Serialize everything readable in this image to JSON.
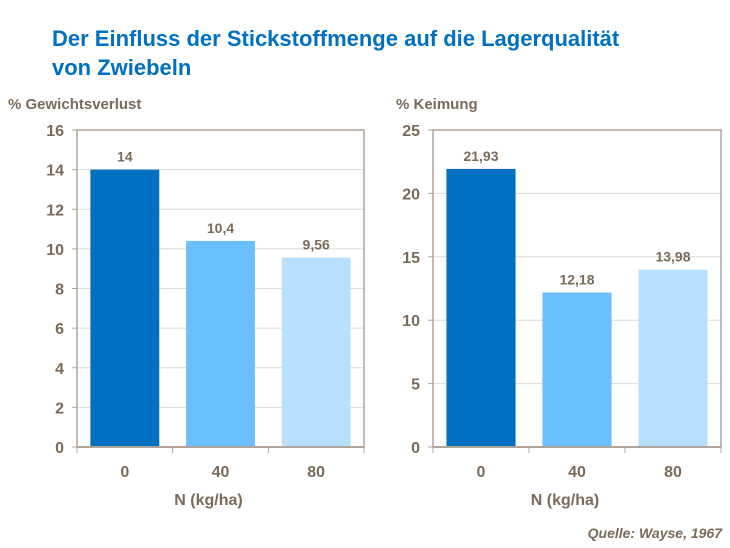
{
  "title_line1": "Der Einfluss der Stickstoffmenge auf die Lagerqualität",
  "title_line2": "von Zwiebeln",
  "source": "Quelle: Wayse, 1967",
  "colors": {
    "title": "#0070c0",
    "text": "#7a6a58",
    "axis": "#b0a498",
    "grid": "#dedad6",
    "bars": [
      "#0070c0",
      "#69bfff",
      "#b7dfff"
    ]
  },
  "chart_data": [
    {
      "type": "bar",
      "ylabel": "% Gewichtsverlust",
      "xlabel": "N (kg/ha)",
      "categories": [
        "0",
        "40",
        "80"
      ],
      "values": [
        14,
        10.4,
        9.56
      ],
      "data_labels": [
        "14",
        "10,4",
        "9,56"
      ],
      "ylim": [
        0,
        16
      ],
      "yticks": [
        0,
        2,
        4,
        6,
        8,
        10,
        12,
        14,
        16
      ],
      "grid": true
    },
    {
      "type": "bar",
      "ylabel": "% Keimung",
      "xlabel": "N (kg/ha)",
      "categories": [
        "0",
        "40",
        "80"
      ],
      "values": [
        21.93,
        12.18,
        13.98
      ],
      "data_labels": [
        "21,93",
        "12,18",
        "13,98"
      ],
      "ylim": [
        0,
        25
      ],
      "yticks": [
        0,
        5,
        10,
        15,
        20,
        25
      ],
      "grid": true
    }
  ]
}
